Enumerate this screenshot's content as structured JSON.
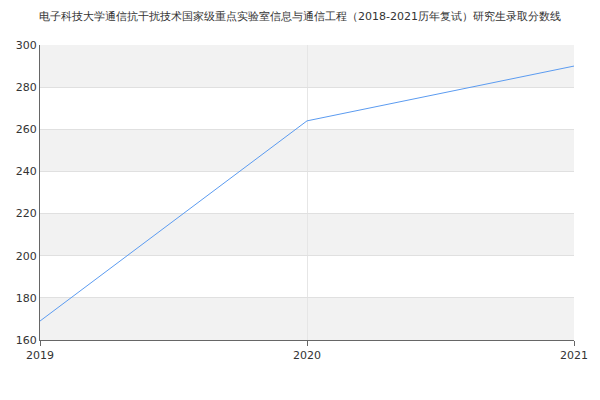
{
  "chart_data": {
    "type": "line",
    "title": "电子科技大学通信抗干扰技术国家级重点实验室信息与通信工程（2018-2021历年复试）研究生录取分数线",
    "x": [
      2019,
      2020,
      2021
    ],
    "values": [
      169,
      264,
      290
    ],
    "color": "#5b9bf0",
    "xlim": [
      2019,
      2021
    ],
    "xticks": [
      2019,
      2020,
      2021
    ],
    "ylim": [
      160,
      300
    ],
    "yticks": [
      160,
      180,
      200,
      220,
      240,
      260,
      280,
      300
    ],
    "grid": true
  }
}
